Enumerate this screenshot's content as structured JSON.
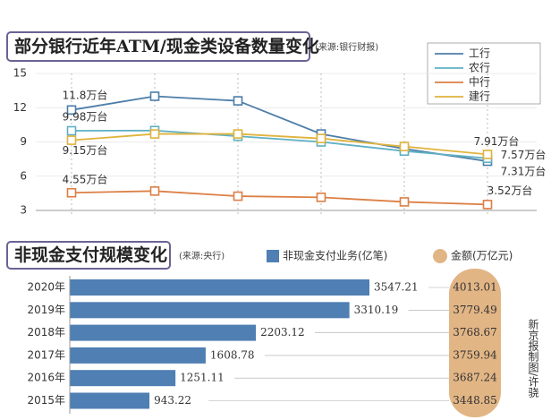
{
  "chart_data": [
    {
      "type": "line",
      "title": "部分银行近年ATM/现金类设备数量变化",
      "source": "(来源:银行财报)",
      "categories": [
        null,
        null,
        null,
        null,
        null,
        null
      ],
      "ylim": [
        3,
        15
      ],
      "yticks": [
        3,
        6,
        9,
        12,
        15
      ],
      "grid": true,
      "legend": "upper right",
      "series": [
        {
          "name": "工行",
          "color": "#4d7ea8",
          "values": [
            11.8,
            13.0,
            12.6,
            9.7,
            8.4,
            7.31
          ],
          "value_labels": [
            "11.8万台",
            null,
            null,
            null,
            null,
            "7.31万台"
          ]
        },
        {
          "name": "农行",
          "color": "#5fb0c4",
          "values": [
            9.98,
            10.0,
            9.5,
            9.0,
            8.2,
            7.57
          ],
          "value_labels": [
            "9.98万台",
            null,
            null,
            null,
            null,
            "7.57万台"
          ]
        },
        {
          "name": "中行",
          "color": "#dc7f45",
          "values": [
            4.55,
            4.7,
            4.25,
            4.15,
            3.75,
            3.52
          ],
          "value_labels": [
            "4.55万台",
            null,
            null,
            null,
            null,
            "3.52万台"
          ]
        },
        {
          "name": "建行",
          "color": "#e0b33c",
          "values": [
            9.15,
            9.7,
            9.7,
            9.3,
            8.6,
            7.91
          ],
          "value_labels": [
            "9.15万台",
            null,
            null,
            null,
            null,
            "7.91万台"
          ]
        }
      ]
    },
    {
      "type": "bar",
      "orientation": "horizontal",
      "title": "非现金支付规模变化",
      "source": "(来源:央行)",
      "categories": [
        "2020年",
        "2019年",
        "2018年",
        "2017年",
        "2016年",
        "2015年"
      ],
      "series": [
        {
          "name": "非现金支付业务(亿笔)",
          "color": "#4f7fb3",
          "values": [
            3547.21,
            3310.19,
            2203.12,
            1608.78,
            1251.11,
            943.22
          ]
        },
        {
          "name": "金额(万亿元)",
          "color": "#e2b585",
          "values": [
            4013.01,
            3779.49,
            3768.67,
            3759.94,
            3687.24,
            3448.85
          ]
        }
      ]
    }
  ],
  "credit": "新京报制图/许骁"
}
